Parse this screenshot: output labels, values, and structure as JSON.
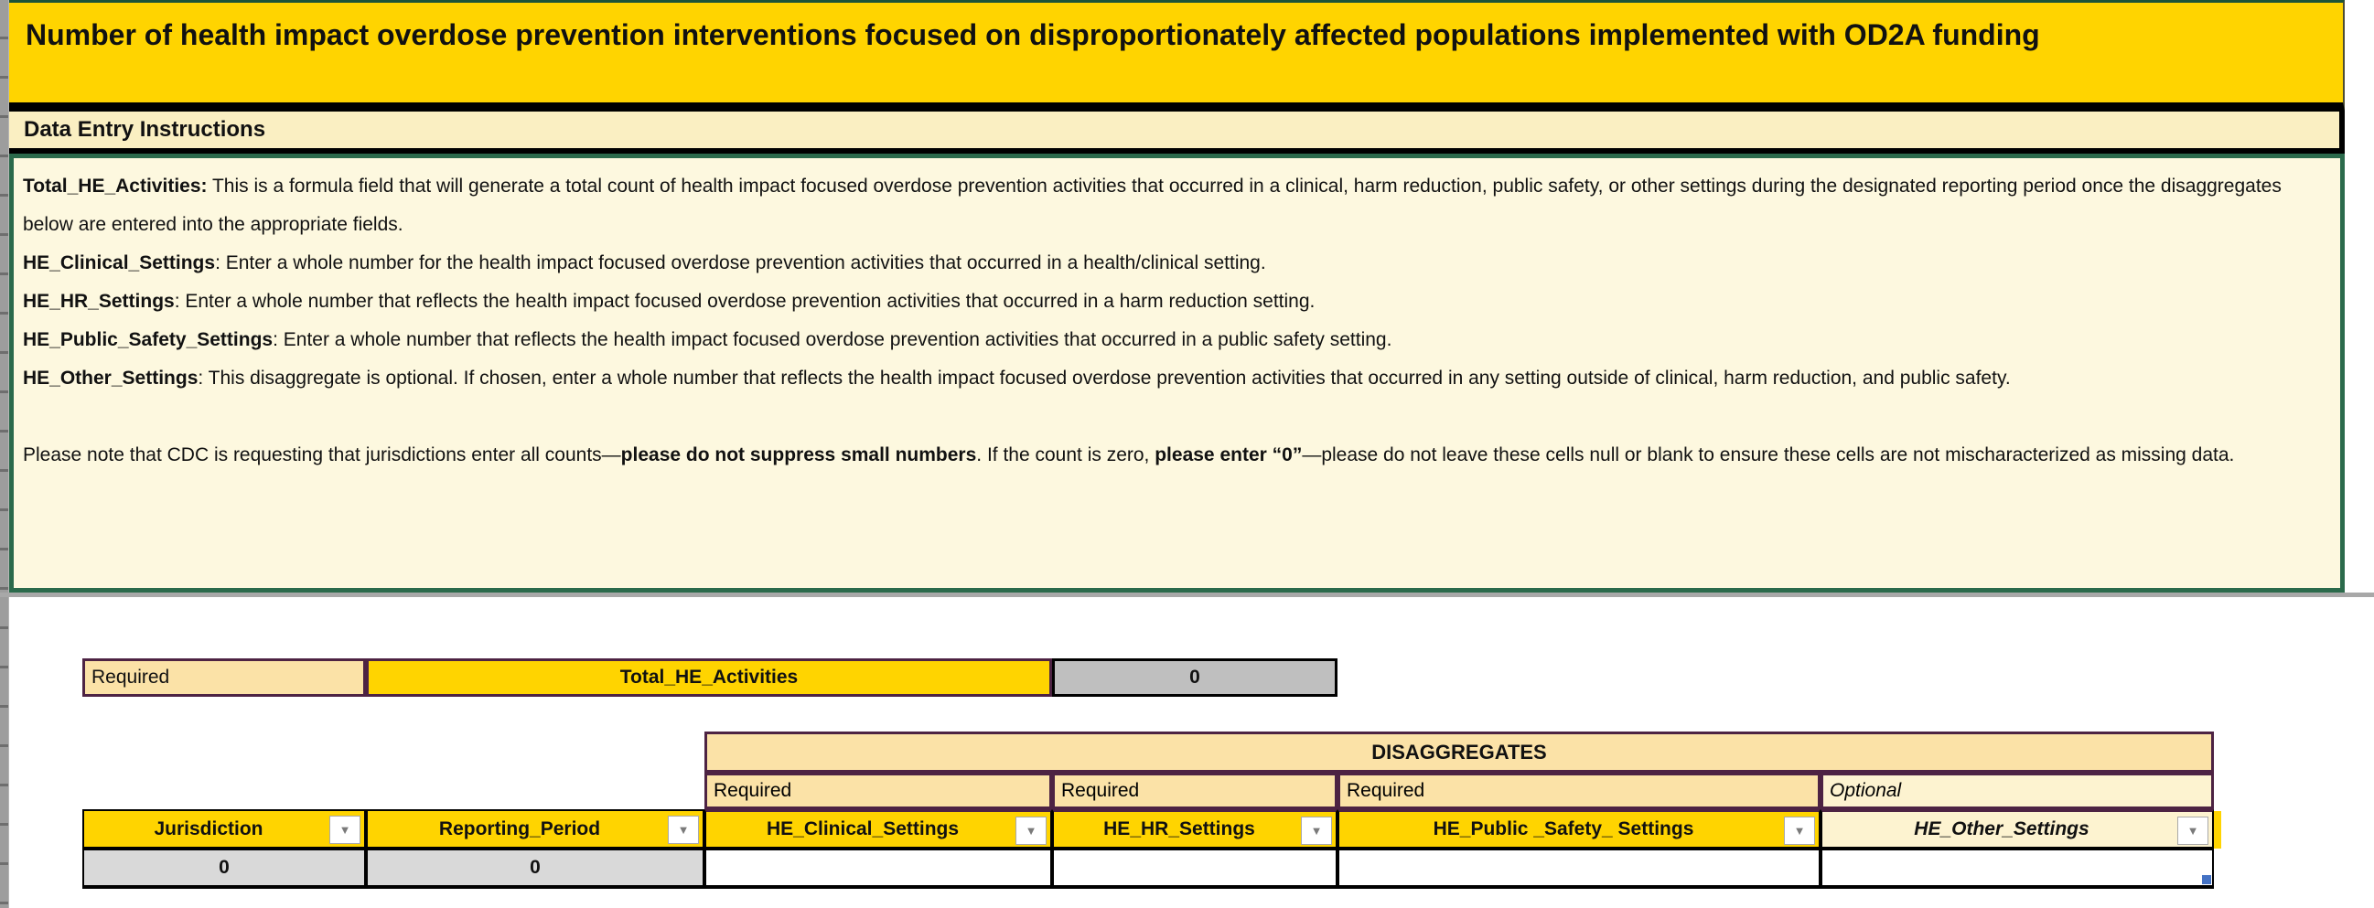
{
  "title": "Number of health impact overdose prevention interventions focused on disproportionately affected populations implemented with OD2A funding",
  "instructions_header": "Data Entry Instructions",
  "instructions": {
    "items": [
      {
        "term": "Total_HE_Activities:",
        "text": " This is a formula field that will generate a total count of health impact focused overdose prevention activities that occurred in a clinical, harm reduction, public safety, or other settings during the designated reporting period once the disaggregates below are entered into the appropriate fields."
      },
      {
        "term": "HE_Clinical_Settings",
        "text": ": Enter a whole number for the health impact focused overdose prevention activities that occurred in a health/clinical setting."
      },
      {
        "term": "HE_HR_Settings",
        "text": ": Enter a whole number that reflects the health impact focused overdose prevention activities that occurred in a harm reduction setting."
      },
      {
        "term": "HE_Public_Safety_Settings",
        "text": ": Enter a whole number that reflects the health impact focused overdose prevention activities that occurred in a public safety setting."
      },
      {
        "term": "HE_Other_Settings",
        "text": ": This disaggregate is optional. If chosen, enter a whole number that reflects the health impact focused overdose prevention activities that occurred in any setting outside of clinical, harm reduction, and public safety."
      }
    ],
    "note": {
      "s1": "Please note that CDC is requesting that jurisdictions enter all counts—",
      "s2": "please do not suppress small numbers",
      "s3": ". If the count is zero, ",
      "s4": "please enter “0”",
      "s5": "—please do not leave these cells null or blank to ensure these cells are not mischaracterized as missing data."
    }
  },
  "summary": {
    "required_label": "Required",
    "field_label": "Total_HE_Activities",
    "value": "0"
  },
  "disaggregates": {
    "banner": "DISAGGREGATES",
    "requirement_labels": [
      "Required",
      "Required",
      "Required",
      "Optional"
    ]
  },
  "table": {
    "columns": [
      {
        "label": "Jurisdiction"
      },
      {
        "label": "Reporting_Period"
      },
      {
        "label": "HE_Clinical_Settings"
      },
      {
        "label": "HE_HR_Settings"
      },
      {
        "label": "HE_Public _Safety_ Settings"
      },
      {
        "label": "HE_Other_Settings"
      }
    ],
    "row": [
      "0",
      "0",
      "",
      "",
      "",
      ""
    ]
  },
  "icons": {
    "filter_dropdown": "▼"
  },
  "colors": {
    "gold": "#ffd400",
    "tan": "#fbe2a7",
    "cream": "#fdf3d0",
    "instructions_bg": "#fdf8df",
    "green_border": "#2b6a4b",
    "purple_border": "#4d2343",
    "gray_cell_dark": "#bfbfbf",
    "gray_cell_light": "#d9d9d9",
    "blue_handle": "#4472c4"
  }
}
